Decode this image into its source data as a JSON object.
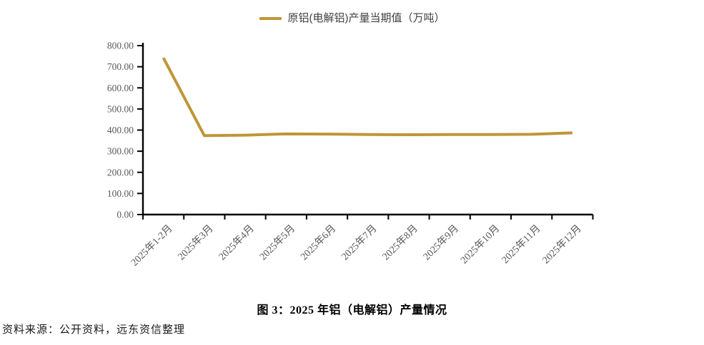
{
  "legend": {
    "label": "原铝(电解铝)产量当期值（万吨）"
  },
  "caption": "图 3：2025 年铝（电解铝）产量情况",
  "source": "资料来源：公开资料，远东资信整理",
  "colors": {
    "series_line": "#BF9636",
    "axis": "#000000",
    "tick_label": "#595959"
  },
  "chart_data": {
    "type": "line",
    "title": "",
    "legend_position": "top",
    "grid": false,
    "categories": [
      "2025年1-2月",
      "2025年3月",
      "2025年4月",
      "2025年5月",
      "2025年6月",
      "2025年7月",
      "2025年8月",
      "2025年9月",
      "2025年10月",
      "2025年11月",
      "2025年12月"
    ],
    "series": [
      {
        "name": "原铝(电解铝)产量当期值（万吨）",
        "color": "#BF9636",
        "values": [
          742,
          374,
          376,
          382,
          381,
          379,
          378,
          379,
          379,
          380,
          387
        ]
      }
    ],
    "xlabel": "",
    "ylabel": "",
    "ylim": [
      0,
      800
    ],
    "ytick_step": 100,
    "ytick_labels": [
      "0.00",
      "100.00",
      "200.00",
      "300.00",
      "400.00",
      "500.00",
      "600.00",
      "700.00",
      "800.00"
    ]
  }
}
